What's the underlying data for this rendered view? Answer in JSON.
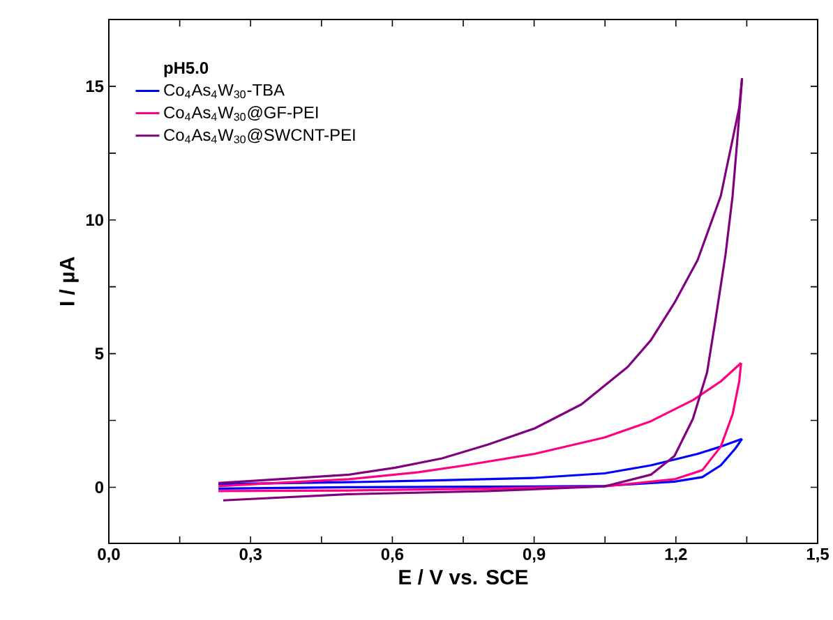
{
  "chart_data": {
    "type": "line",
    "xlabel": "E / V vs. SCE",
    "ylabel": "I / µA",
    "legend_title": "**pH5.0**",
    "legend": "top left",
    "marker": "none",
    "line_style": "solid",
    "grid": false,
    "xlim": [
      0,
      1.5
    ],
    "ylim": [
      -2.1,
      17.5
    ],
    "xticks": [
      {
        "value": 0,
        "label": "0,0"
      },
      {
        "value": 0.15,
        "label": null
      },
      {
        "value": 0.3,
        "label": "0,3"
      },
      {
        "value": 0.45,
        "label": null
      },
      {
        "value": 0.6,
        "label": "0,6"
      },
      {
        "value": 0.75,
        "label": null
      },
      {
        "value": 0.9,
        "label": "0,9"
      },
      {
        "value": 1.05,
        "label": null
      },
      {
        "value": 1.2,
        "label": "1,2"
      },
      {
        "value": 1.35,
        "label": null
      },
      {
        "value": 1.5,
        "label": "1,5"
      }
    ],
    "yticks": [
      0,
      {
        "value": 2.5,
        "label": null
      },
      5,
      {
        "value": 7.5,
        "label": null
      },
      10,
      {
        "value": 12.5,
        "label": null
      },
      15
    ],
    "series": [
      {
        "name": "Co$_{4}$As$_{4}$W$_{30}$-TBA",
        "color": "#0000ff",
        "x": [
          0.232,
          0.508,
          0.901,
          1.049,
          1.197,
          1.256,
          1.295,
          1.325,
          1.34
        ],
        "values": [
          -0.05,
          0.0,
          0.03,
          0.05,
          0.21,
          0.38,
          0.82,
          1.43,
          1.81
        ]
      },
      {
        "color": "#0000ff",
        "x": [
          0.232,
          0.508,
          0.705,
          0.901,
          1.049,
          1.147,
          1.246,
          1.295,
          1.34
        ],
        "values": [
          0.12,
          0.19,
          0.26,
          0.35,
          0.52,
          0.82,
          1.25,
          1.52,
          1.81
        ]
      },
      {
        "name": "Co$_{4}$As$_{4}$W$_{30}$@GF-PEI",
        "color": "#ff0080",
        "x": [
          0.232,
          0.508,
          0.803,
          1.049,
          1.197,
          1.256,
          1.295,
          1.32,
          1.334,
          1.338
        ],
        "values": [
          -0.14,
          -0.12,
          -0.05,
          0.03,
          0.3,
          0.64,
          1.52,
          2.73,
          3.96,
          4.65
        ]
      },
      {
        "color": "#ff0080",
        "x": [
          0.232,
          0.311,
          0.508,
          0.655,
          0.754,
          0.901,
          1.049,
          1.147,
          1.236,
          1.295,
          1.338
        ],
        "values": [
          0.04,
          0.12,
          0.3,
          0.56,
          0.82,
          1.25,
          1.86,
          2.47,
          3.26,
          3.96,
          4.65
        ]
      },
      {
        "name": "Co$_{4}$As$_{4}$W$_{30}$@SWCNT-PEI",
        "color": "#800080",
        "x": [
          0.242,
          0.508,
          0.803,
          1.049,
          1.147,
          1.197,
          1.236,
          1.266,
          1.285,
          1.305,
          1.32,
          1.33,
          1.34
        ],
        "values": [
          -0.49,
          -0.26,
          -0.14,
          0.03,
          0.47,
          1.17,
          2.56,
          4.3,
          6.4,
          8.7,
          10.9,
          13.0,
          15.3
        ]
      },
      {
        "color": "#800080",
        "x": [
          0.232,
          0.36,
          0.508,
          0.606,
          0.705,
          0.803,
          0.901,
          1.0,
          1.098,
          1.147,
          1.197,
          1.246,
          1.295,
          1.334,
          1.34
        ],
        "values": [
          0.16,
          0.3,
          0.47,
          0.73,
          1.08,
          1.6,
          2.2,
          3.1,
          4.5,
          5.5,
          6.9,
          8.5,
          10.9,
          14.2,
          15.3
        ]
      }
    ]
  }
}
